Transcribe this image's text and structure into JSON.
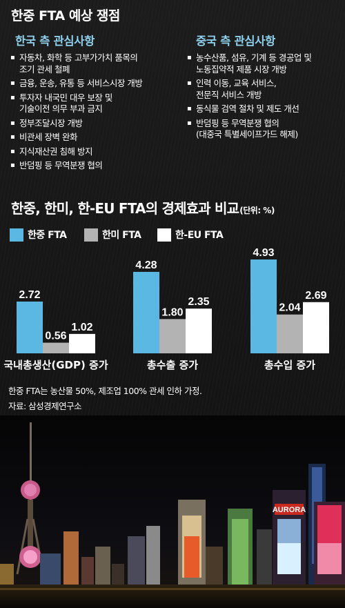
{
  "header": {
    "title": "한중 FTA 예상 쟁점"
  },
  "korea_interests": {
    "heading": "한국 측 관심사항",
    "items": [
      "자동차, 화학 등 고부가가치 품목의\n조기 관세 철폐",
      "금융, 운송, 유통 등 서비스시장 개방",
      "투자자 내국민 대우 보장 및\n기술이전 의무 부과 금지",
      "정부조달시장 개방",
      "비관세 장벽 완화",
      "지식재산권 침해 방지",
      "반덤핑 등 무역분쟁 협의"
    ]
  },
  "china_interests": {
    "heading": "중국 측 관심사항",
    "items": [
      "농수산품, 섬유, 기계 등 경공업 및\n노동집약적 제품 시장 개방",
      "인력 이동, 교육 서비스,\n전문직 서비스 개방",
      "동식물 검역 절차 및 제도 개선",
      "반덤핑 등 무역분쟁 협의\n(대중국 특별세이프가드 해제)"
    ]
  },
  "chart_data": {
    "type": "bar",
    "title": "한중, 한미, 한-EU FTA의 경제효과 비교",
    "unit": "(단위: %)",
    "categories": [
      "국내총생산(GDP) 증가",
      "총수출 증가",
      "총수입 증가"
    ],
    "series": [
      {
        "name": "한중 FTA",
        "color": "#5bb8e2",
        "values": [
          2.72,
          4.28,
          4.93
        ],
        "labels": [
          "2.72",
          "4.28",
          "4.93"
        ]
      },
      {
        "name": "한미 FTA",
        "color": "#b3b3b3",
        "values": [
          0.56,
          1.8,
          2.04
        ],
        "labels": [
          "0.56",
          "1.80",
          "2.04"
        ]
      },
      {
        "name": "한-EU FTA",
        "color": "#ffffff",
        "values": [
          1.02,
          2.35,
          2.69
        ],
        "labels": [
          "1.02",
          "2.35",
          "2.69"
        ]
      }
    ],
    "ylim": [
      0,
      4.93
    ],
    "grid": false,
    "legend": "top-left"
  },
  "footnotes": {
    "assumption": "한중 FTA는 농산물 50%, 제조업 100% 관세 인하 가정.",
    "source": "자료: 삼성경제연구소"
  },
  "photo": {
    "sign_text": "AURORA"
  }
}
